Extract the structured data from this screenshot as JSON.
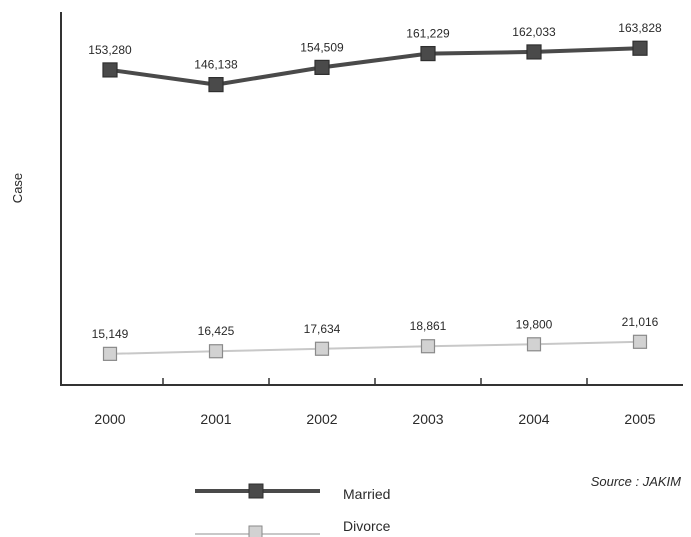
{
  "chart_data": {
    "type": "line",
    "title": "",
    "xlabel": "",
    "ylabel": "Case",
    "categories": [
      "2000",
      "2001",
      "2002",
      "2003",
      "2004",
      "2005"
    ],
    "ylim": [
      0,
      180000
    ],
    "grid": false,
    "legend_position": "bottom-center",
    "series": [
      {
        "name": "Married",
        "values": [
          153280,
          146138,
          154509,
          161229,
          162033,
          163828
        ],
        "labels": [
          "153,280",
          "146,138",
          "154,509",
          "161,229",
          "162,033",
          "163,828"
        ],
        "color": "#4a4a4a",
        "marker": "filled-square"
      },
      {
        "name": "Divorce",
        "values": [
          15149,
          16425,
          17634,
          18861,
          19800,
          21016
        ],
        "labels": [
          "15,149",
          "16,425",
          "17,634",
          "18,861",
          "19,800",
          "21,016"
        ],
        "color": "#c8c8c8",
        "marker": "light-square"
      }
    ],
    "source": "Source : JAKIM"
  }
}
